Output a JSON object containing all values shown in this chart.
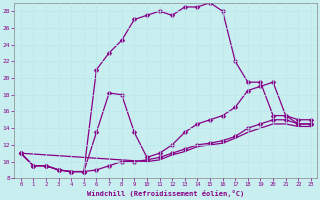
{
  "xlabel": "Windchill (Refroidissement éolien,°C)",
  "bg_color": "#c8eef0",
  "grid_color": "#b8e8ea",
  "line_color": "#880088",
  "xlim": [
    -0.5,
    23.5
  ],
  "ylim": [
    8,
    29
  ],
  "xticks": [
    0,
    1,
    2,
    3,
    4,
    5,
    6,
    7,
    8,
    9,
    10,
    11,
    12,
    13,
    14,
    15,
    16,
    17,
    18,
    19,
    20,
    21,
    22,
    23
  ],
  "yticks": [
    8,
    10,
    12,
    14,
    16,
    18,
    20,
    22,
    24,
    26,
    28
  ],
  "curve1_x": [
    0,
    1,
    2,
    3,
    4,
    5,
    6,
    7,
    8,
    9,
    10,
    11,
    12,
    13,
    14,
    15,
    16,
    17,
    18,
    19,
    20,
    21,
    22,
    23
  ],
  "curve1_y": [
    11,
    9.5,
    9.5,
    9.0,
    8.8,
    8.8,
    21.0,
    23.0,
    24.5,
    27.0,
    27.5,
    28.0,
    27.5,
    28.5,
    28.5,
    29.0,
    28.0,
    22.0,
    19.5,
    19.5,
    15.5,
    15.5,
    15.0,
    15.0
  ],
  "curve2_x": [
    0,
    1,
    2,
    3,
    4,
    5,
    6,
    7,
    8,
    9,
    10,
    11,
    12,
    13,
    14,
    15,
    16,
    17,
    18,
    19,
    20,
    21,
    22,
    23
  ],
  "curve2_y": [
    11,
    9.5,
    9.5,
    9.0,
    8.8,
    8.8,
    13.5,
    18.2,
    18.0,
    13.5,
    10.5,
    11.0,
    12.0,
    13.5,
    14.5,
    15.0,
    15.5,
    16.5,
    18.5,
    19.0,
    19.5,
    15.5,
    14.5,
    14.5
  ],
  "curve3_x": [
    0,
    1,
    2,
    3,
    4,
    5,
    6,
    7,
    8,
    9,
    10,
    11,
    12,
    13,
    14,
    15,
    16,
    17,
    18,
    19,
    20,
    21,
    22,
    23
  ],
  "curve3_y": [
    11,
    9.5,
    9.5,
    9.0,
    8.8,
    8.8,
    9.0,
    9.5,
    10.0,
    10.0,
    10.2,
    10.5,
    11.0,
    11.5,
    12.0,
    12.2,
    12.5,
    13.0,
    14.0,
    14.5,
    15.0,
    15.0,
    14.5,
    14.5
  ],
  "curve4_x": [
    0,
    10,
    11,
    12,
    13,
    14,
    15,
    16,
    17,
    18,
    19,
    20,
    21,
    22,
    23
  ],
  "curve4_y": [
    11,
    10.0,
    10.2,
    10.8,
    11.2,
    11.8,
    12.0,
    12.2,
    12.8,
    13.5,
    14.0,
    14.5,
    14.5,
    14.2,
    14.2
  ]
}
